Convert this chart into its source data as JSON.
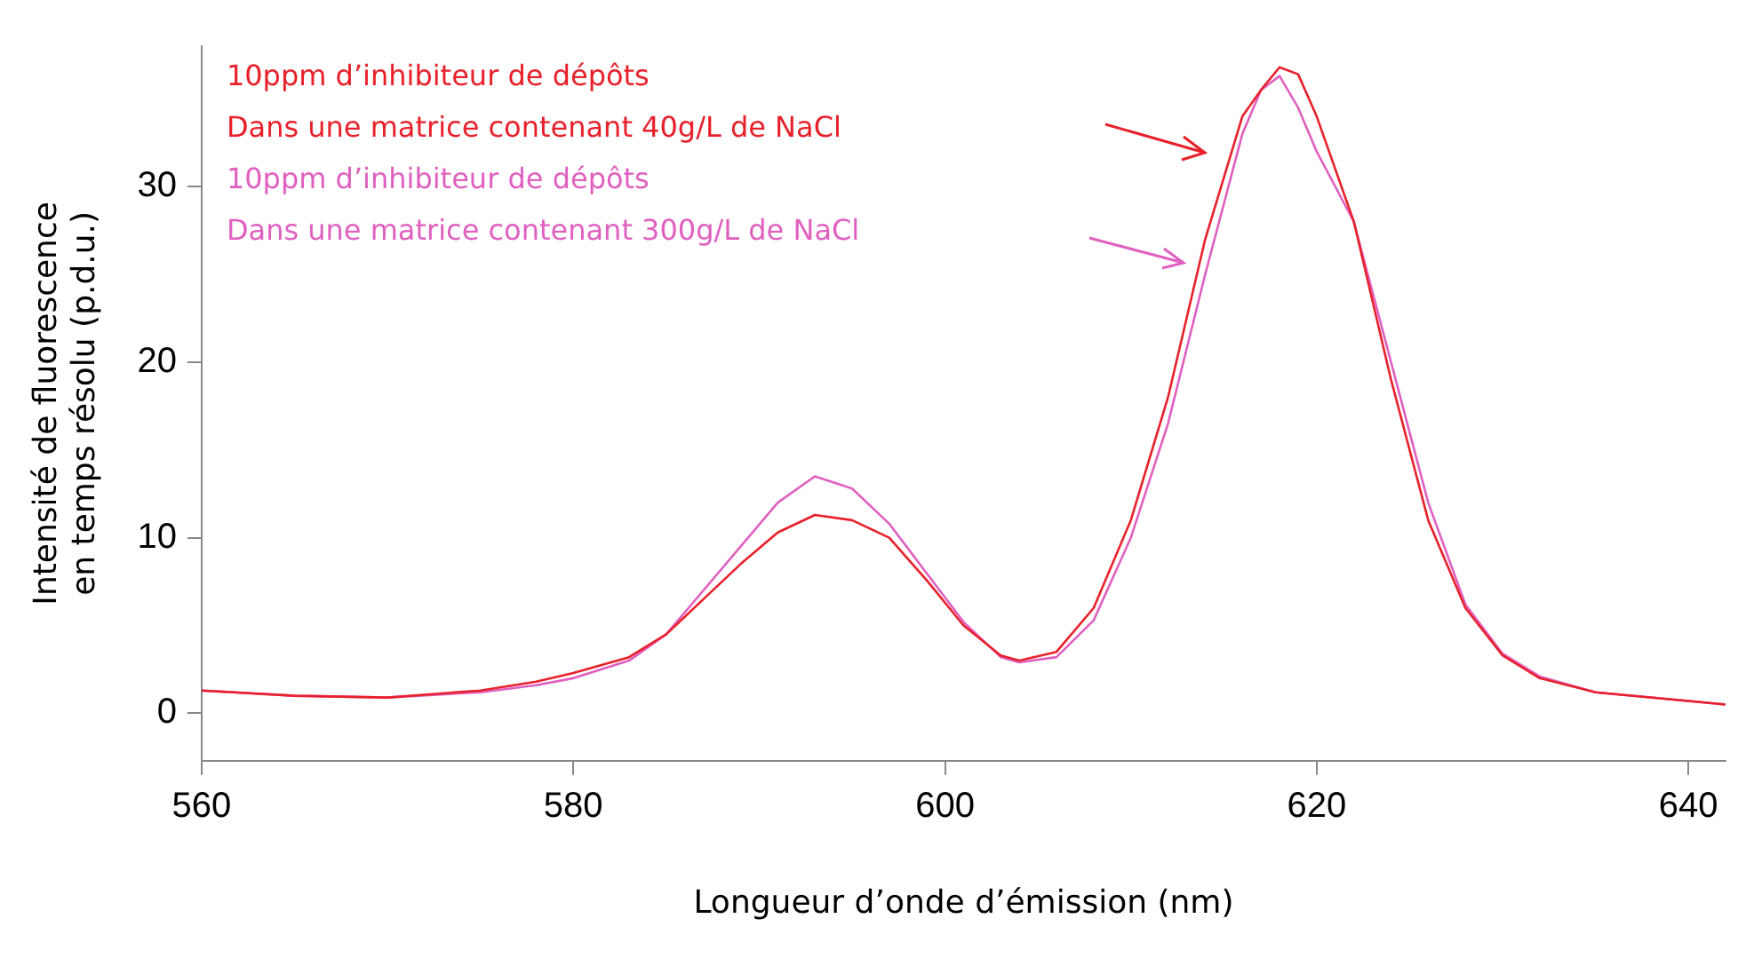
{
  "chart_data": {
    "type": "line",
    "xlabel": "Longueur d’onde d’émission (nm)",
    "ylabel": "Intensité de fluorescence\nen temps résolu (p.d.u.)",
    "xlim": [
      560,
      642
    ],
    "xticks": [
      560,
      580,
      600,
      620,
      640
    ],
    "ylim": [
      -2.7,
      38
    ],
    "yticks": [
      0,
      10,
      20,
      30
    ],
    "grid": false,
    "legend": false,
    "marker": "none",
    "line_style": "solid",
    "x": [
      560,
      565,
      570,
      575,
      578,
      580,
      583,
      585,
      587,
      589,
      591,
      593,
      595,
      597,
      599,
      601,
      603,
      604,
      606,
      608,
      610,
      612,
      614,
      616,
      617,
      618,
      619,
      620,
      622,
      624,
      626,
      628,
      630,
      632,
      635,
      640,
      642
    ],
    "series": [
      {
        "name": "10ppm d’inhibiteur de dépôts\nDans une matrice contenant 40g/L de NaCl",
        "color": "#e8202a",
        "values": [
          1.3,
          1.0,
          0.9,
          1.3,
          1.8,
          2.3,
          3.2,
          4.5,
          6.5,
          8.5,
          10.3,
          11.3,
          11.0,
          10.0,
          7.6,
          5.0,
          3.3,
          3.0,
          3.5,
          6.0,
          11,
          18,
          27,
          34,
          35.5,
          36.8,
          36.4,
          34,
          28,
          19,
          11,
          6,
          3.3,
          2.0,
          1.2,
          0.7,
          0.5
        ]
      },
      {
        "name": "10ppm d’inhibiteur de dépôts\nDans une matrice contenant 300g/L de NaCl",
        "color": "#e060c0",
        "values": [
          1.3,
          1.0,
          0.9,
          1.2,
          1.6,
          2.0,
          3.0,
          4.5,
          7.0,
          9.5,
          12.0,
          13.5,
          12.8,
          10.8,
          8.0,
          5.2,
          3.2,
          2.9,
          3.2,
          5.3,
          10,
          16.5,
          25,
          33,
          35.5,
          36.3,
          34.5,
          32,
          28,
          20,
          12,
          6.2,
          3.4,
          2.1,
          1.2,
          0.7,
          0.5
        ]
      }
    ]
  }
}
